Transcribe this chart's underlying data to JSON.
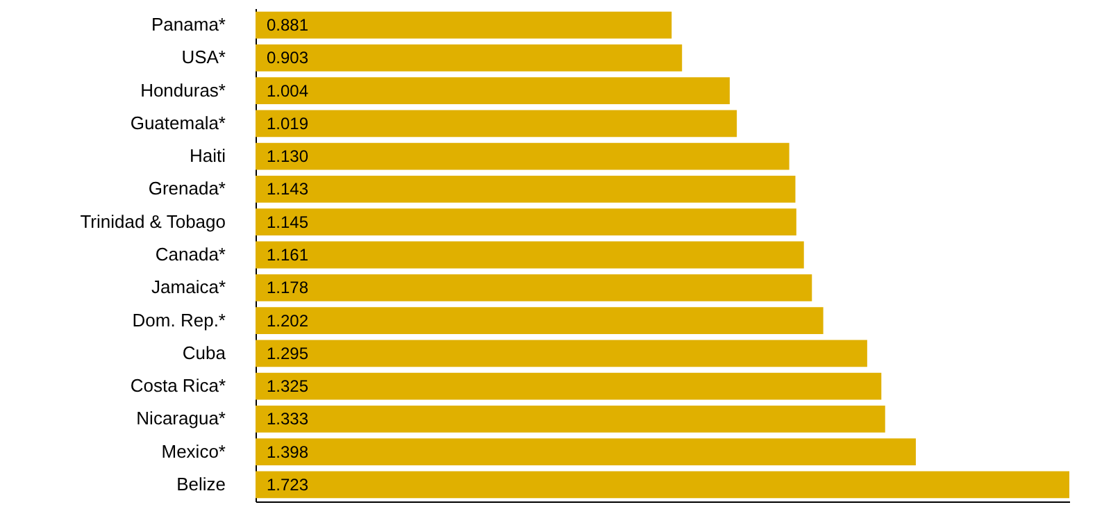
{
  "chart_data": {
    "type": "bar",
    "orientation": "horizontal",
    "grid": false,
    "categories": [
      "Panama*",
      "USA*",
      "Honduras*",
      "Guatemala*",
      "Haiti",
      "Grenada*",
      "Trinidad & Tobago",
      "Canada*",
      "Jamaica*",
      "Dom. Rep.*",
      "Cuba",
      "Costa Rica*",
      "Nicaragua*",
      "Mexico*",
      "Belize"
    ],
    "values": [
      0.881,
      0.903,
      1.004,
      1.019,
      1.13,
      1.143,
      1.145,
      1.161,
      1.178,
      1.202,
      1.295,
      1.325,
      1.333,
      1.398,
      1.723
    ],
    "value_labels": [
      "0.881",
      "0.903",
      "1.004",
      "1.019",
      "1.130",
      "1.143",
      "1.145",
      "1.161",
      "1.178",
      "1.202",
      "1.295",
      "1.325",
      "1.333",
      "1.398",
      "1.723"
    ],
    "color": "#e0b000"
  }
}
